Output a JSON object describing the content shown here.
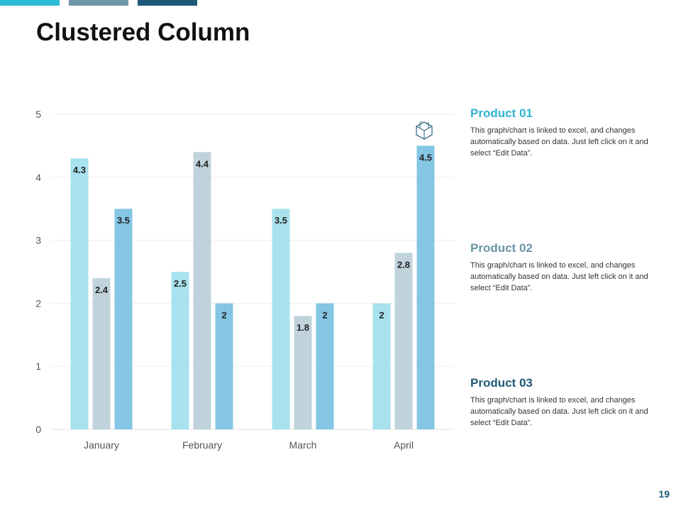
{
  "slide": {
    "title": "Clustered Column",
    "page_number": "19"
  },
  "colors": {
    "accent_bars": [
      "#2bbcd6",
      "#6e97a8",
      "#1c5a78"
    ],
    "product_01": "#2eb3cf",
    "product_02": "#6a95a6",
    "product_03": "#1f5a77"
  },
  "chart_data": {
    "type": "bar",
    "categories": [
      "January",
      "February",
      "March",
      "April"
    ],
    "series": [
      {
        "name": "Product 01",
        "values": [
          4.3,
          2.5,
          3.5,
          2
        ],
        "color": "#a8e2ee"
      },
      {
        "name": "Product 02",
        "values": [
          2.4,
          4.4,
          1.8,
          2.8
        ],
        "color": "#c0d3dc"
      },
      {
        "name": "Product 03",
        "values": [
          3.5,
          2,
          2,
          4.5
        ],
        "color": "#84c6e4"
      }
    ],
    "ylim": [
      0,
      5
    ],
    "yticks": [
      "0",
      "1",
      "2",
      "3",
      "4",
      "5"
    ],
    "grid": true,
    "legend": "right",
    "value_labels": true,
    "icon": "boxes-icon"
  },
  "legend_blocks": [
    {
      "title": "Product 01",
      "description": "This graph/chart is linked to excel, and changes automatically based on data. Just left click on it and select “Edit Data”."
    },
    {
      "title": "Product 02",
      "description": "This graph/chart is linked to excel, and changes automatically based on data. Just left click on it and select “Edit Data”."
    },
    {
      "title": "Product 03",
      "description": "This graph/chart is linked to excel, and changes automatically based on data. Just left click on it and select “Edit Data”."
    }
  ]
}
